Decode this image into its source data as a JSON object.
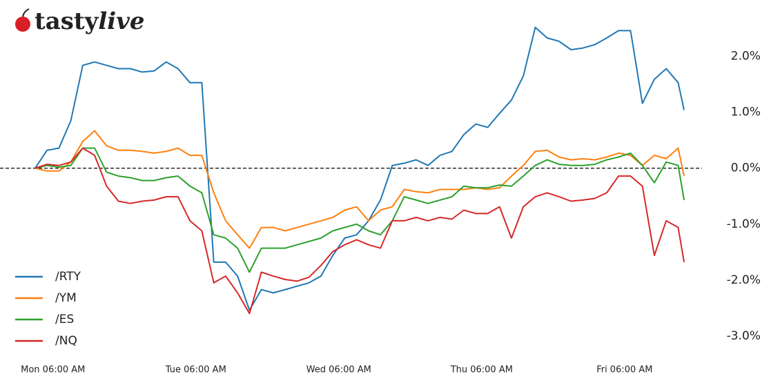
{
  "logo": {
    "brand": "tasty",
    "accent": "live"
  },
  "chart_data": {
    "type": "line",
    "x": [
      3,
      5,
      7,
      9,
      11,
      13,
      15,
      17,
      19,
      21,
      23,
      25,
      27,
      29,
      31,
      33,
      35,
      37,
      39,
      41,
      43,
      45,
      47,
      49,
      51,
      53,
      55,
      57,
      59,
      61,
      63,
      65,
      67,
      69,
      71,
      73,
      75,
      77,
      79,
      81,
      83,
      85,
      87,
      89,
      91,
      93,
      95,
      97,
      99,
      101,
      103,
      105,
      107,
      109,
      111,
      112
    ],
    "xlim": [
      0,
      115
    ],
    "xticks": [
      {
        "value": 6,
        "label": "Mon 06:00 AM"
      },
      {
        "value": 30,
        "label": "Tue 06:00 AM"
      },
      {
        "value": 54,
        "label": "Wed 06:00 AM"
      },
      {
        "value": 78,
        "label": "Thu 06:00 AM"
      },
      {
        "value": 102,
        "label": "Fri 06:00 AM"
      }
    ],
    "ylim": [
      -3.2,
      2.7
    ],
    "yticks": [
      {
        "value": 2,
        "label": "2.0%"
      },
      {
        "value": 1,
        "label": "1.0%"
      },
      {
        "value": 0,
        "label": "0.0%"
      },
      {
        "value": -1,
        "label": "-1.0%"
      },
      {
        "value": -2,
        "label": "-2.0%"
      },
      {
        "value": -3,
        "label": "-3.0%"
      }
    ],
    "hline": 0,
    "legend": "lower left",
    "series": [
      {
        "name": "/RTY",
        "color": "#1f77b4",
        "values": [
          0,
          0.32,
          0.36,
          0.85,
          1.84,
          1.9,
          1.84,
          1.78,
          1.78,
          1.72,
          1.74,
          1.9,
          1.78,
          1.53,
          1.53,
          -1.68,
          -1.68,
          -1.93,
          -2.54,
          -2.17,
          -2.23,
          -2.17,
          -2.11,
          -2.05,
          -1.93,
          -1.56,
          -1.25,
          -1.19,
          -0.94,
          -0.57,
          0.05,
          0.09,
          0.15,
          0.05,
          0.23,
          0.3,
          0.6,
          0.79,
          0.73,
          0.98,
          1.22,
          1.65,
          2.52,
          2.33,
          2.27,
          2.12,
          2.15,
          2.21,
          2.33,
          2.46,
          2.46,
          1.16,
          1.59,
          1.78,
          1.53,
          1.04
        ]
      },
      {
        "name": "/YM",
        "color": "#ff7f0e",
        "values": [
          0,
          -0.05,
          -0.05,
          0.11,
          0.48,
          0.67,
          0.4,
          0.32,
          0.32,
          0.3,
          0.27,
          0.3,
          0.36,
          0.23,
          0.23,
          -0.44,
          -0.94,
          -1.19,
          -1.43,
          -1.06,
          -1.06,
          -1.12,
          -1.06,
          -1.0,
          -0.94,
          -0.88,
          -0.75,
          -0.69,
          -0.94,
          -0.75,
          -0.69,
          -0.38,
          -0.42,
          -0.44,
          -0.38,
          -0.38,
          -0.38,
          -0.35,
          -0.38,
          -0.35,
          -0.14,
          0.05,
          0.3,
          0.32,
          0.2,
          0.15,
          0.17,
          0.15,
          0.2,
          0.27,
          0.23,
          0.05,
          0.23,
          0.17,
          0.36,
          -0.14
        ]
      },
      {
        "name": "/ES",
        "color": "#2ca02c",
        "values": [
          0,
          0.05,
          0.02,
          0.05,
          0.36,
          0.36,
          -0.07,
          -0.14,
          -0.17,
          -0.22,
          -0.22,
          -0.17,
          -0.14,
          -0.32,
          -0.44,
          -1.19,
          -1.25,
          -1.43,
          -1.86,
          -1.43,
          -1.43,
          -1.43,
          -1.37,
          -1.31,
          -1.25,
          -1.12,
          -1.06,
          -1.0,
          -1.12,
          -1.19,
          -0.94,
          -0.51,
          -0.57,
          -0.63,
          -0.57,
          -0.51,
          -0.32,
          -0.35,
          -0.35,
          -0.3,
          -0.32,
          -0.14,
          0.05,
          0.15,
          0.07,
          0.05,
          0.05,
          0.07,
          0.15,
          0.2,
          0.27,
          0.05,
          -0.26,
          0.11,
          0.05,
          -0.57
        ]
      },
      {
        "name": "/NQ",
        "color": "#d62728",
        "values": [
          0,
          0.07,
          0.05,
          0.11,
          0.36,
          0.23,
          -0.32,
          -0.59,
          -0.63,
          -0.59,
          -0.57,
          -0.51,
          -0.51,
          -0.94,
          -1.12,
          -2.05,
          -1.93,
          -2.23,
          -2.6,
          -1.86,
          -1.93,
          -1.99,
          -2.02,
          -1.95,
          -1.74,
          -1.49,
          -1.37,
          -1.28,
          -1.37,
          -1.43,
          -0.94,
          -0.94,
          -0.88,
          -0.94,
          -0.88,
          -0.91,
          -0.75,
          -0.81,
          -0.81,
          -0.69,
          -1.25,
          -0.69,
          -0.51,
          -0.44,
          -0.51,
          -0.59,
          -0.57,
          -0.54,
          -0.44,
          -0.14,
          -0.14,
          -0.32,
          -1.56,
          -0.94,
          -1.06,
          -1.68
        ]
      }
    ]
  }
}
